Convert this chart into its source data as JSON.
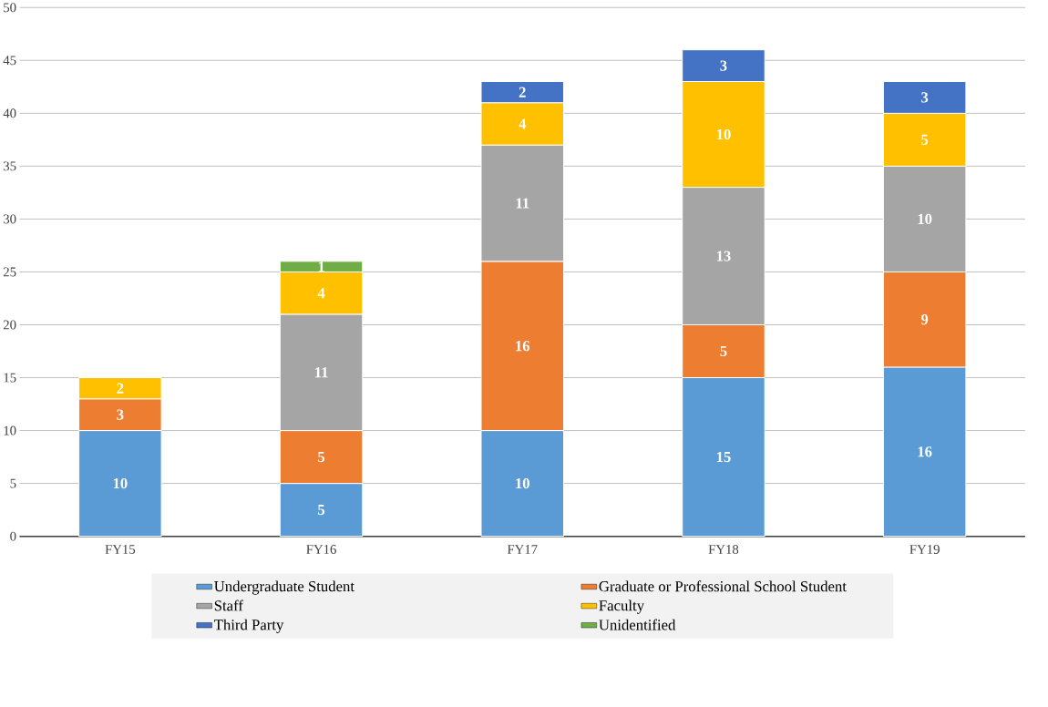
{
  "chart_data": {
    "type": "bar",
    "stacked": true,
    "data_labels": true,
    "grid": "y",
    "legend": "bottom",
    "categories": [
      "FY15",
      "FY16",
      "FY17",
      "FY18",
      "FY19"
    ],
    "ylim": [
      0,
      50
    ],
    "yticks": [
      0,
      5,
      10,
      15,
      20,
      25,
      30,
      35,
      40,
      45,
      50
    ],
    "series": [
      {
        "name": "Undergraduate Student",
        "color": "#5b9bd5",
        "values": [
          10,
          5,
          10,
          15,
          16
        ]
      },
      {
        "name": "Graduate or Professional School Student",
        "color": "#ed7d31",
        "values": [
          3,
          5,
          16,
          5,
          9
        ]
      },
      {
        "name": "Staff",
        "color": "#a5a5a5",
        "values": [
          null,
          11,
          11,
          13,
          10
        ]
      },
      {
        "name": "Faculty",
        "color": "#ffc000",
        "values": [
          2,
          4,
          4,
          10,
          5
        ]
      },
      {
        "name": "Third Party",
        "color": "#4472c4",
        "values": [
          null,
          null,
          2,
          3,
          3
        ]
      },
      {
        "name": "Unidentified",
        "color": "#70ad47",
        "values": [
          null,
          1,
          null,
          null,
          null
        ]
      }
    ]
  }
}
